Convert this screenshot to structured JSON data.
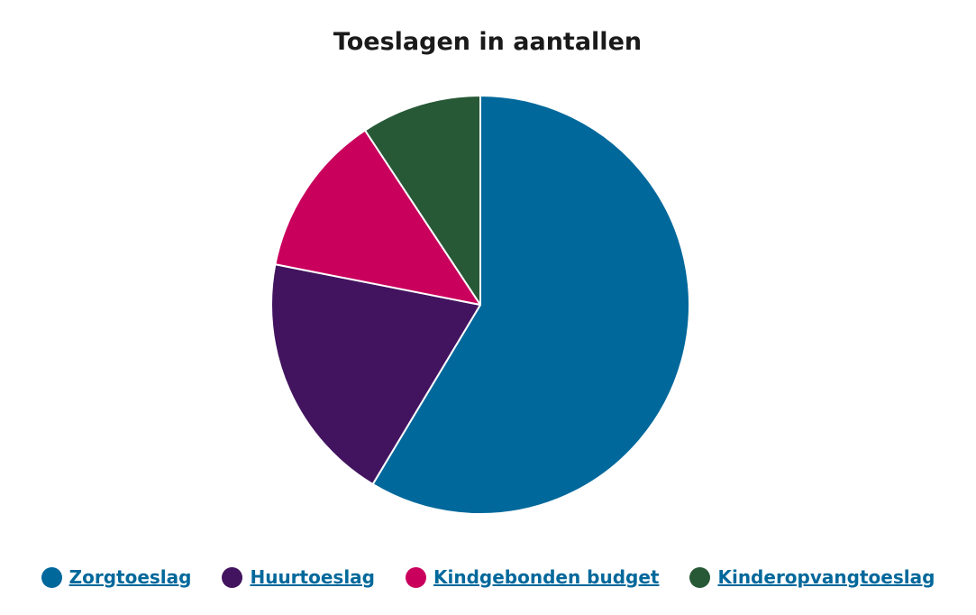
{
  "chart_data": {
    "type": "pie",
    "title": "Toeslagen in aantallen",
    "start_angle": "top",
    "direction": "clockwise",
    "legend_position": "bottom",
    "link_color": "#01689b",
    "categories": [
      "Zorgtoeslag",
      "Huurtoeslag",
      "Kindgebonden budget",
      "Kinderopvangtoeslag"
    ],
    "values": [
      58.6,
      19.5,
      12.6,
      9.3
    ],
    "colors": [
      "#01689b",
      "#42145f",
      "#ca005d",
      "#275937"
    ]
  }
}
